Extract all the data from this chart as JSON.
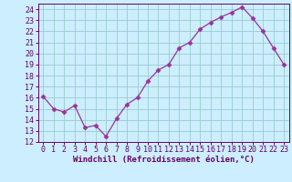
{
  "x": [
    0,
    1,
    2,
    3,
    4,
    5,
    6,
    7,
    8,
    9,
    10,
    11,
    12,
    13,
    14,
    15,
    16,
    17,
    18,
    19,
    20,
    21,
    22,
    23
  ],
  "y": [
    16.1,
    15.0,
    14.7,
    15.3,
    13.3,
    13.5,
    12.5,
    14.1,
    15.4,
    16.0,
    17.5,
    18.5,
    19.0,
    20.5,
    21.0,
    22.2,
    22.8,
    23.3,
    23.7,
    24.2,
    23.2,
    22.0,
    20.5,
    19.0
  ],
  "line_color": "#993399",
  "marker": "D",
  "marker_size": 2.5,
  "bg_color": "#cceeff",
  "grid_color": "#99cccc",
  "xlabel": "Windchill (Refroidissement éolien,°C)",
  "ylabel_ticks": [
    12,
    13,
    14,
    15,
    16,
    17,
    18,
    19,
    20,
    21,
    22,
    23,
    24
  ],
  "xlim": [
    -0.5,
    23.5
  ],
  "ylim": [
    12,
    24.5
  ],
  "xlabel_fontsize": 6.5,
  "tick_fontsize": 6.0,
  "tick_color": "#660066",
  "spine_color": "#660066"
}
